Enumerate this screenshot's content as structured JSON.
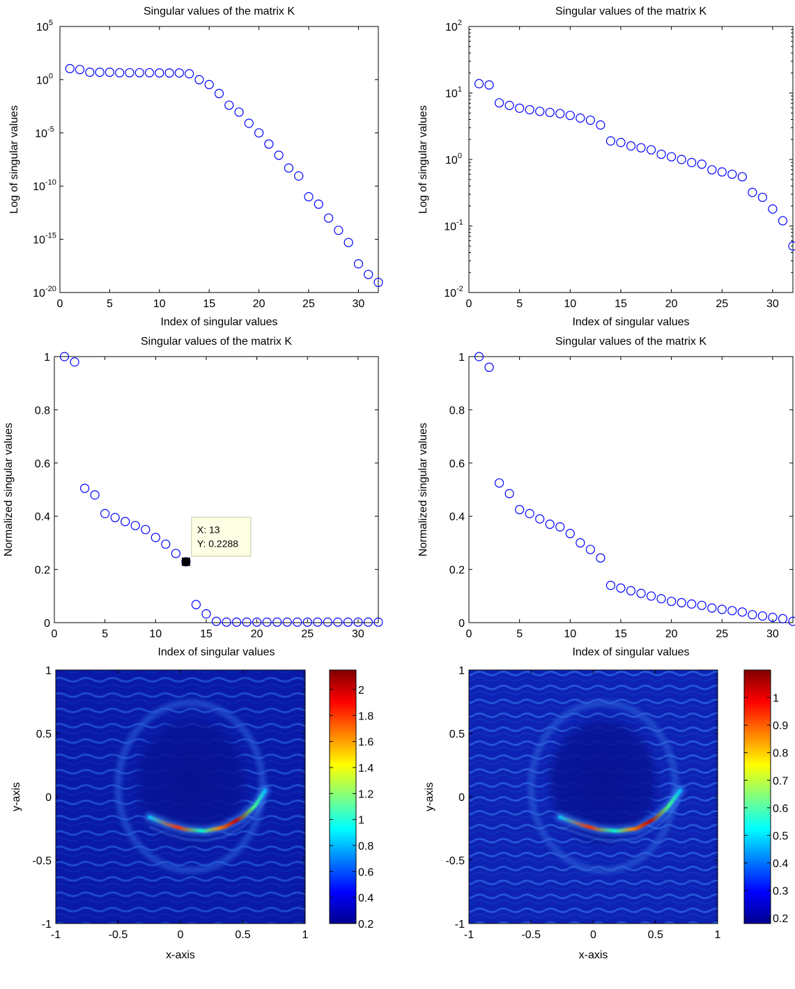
{
  "chart_data": [
    {
      "type": "scatter",
      "title": "Singular values of the matrix K",
      "xlabel": "Index of singular values",
      "ylabel": "Log of singular values",
      "yscale": "log",
      "xlim": [
        0,
        32
      ],
      "ylim": [
        1e-20,
        100000.0
      ],
      "xticks": [
        0,
        5,
        10,
        15,
        20,
        25,
        30
      ],
      "yticks": [
        {
          "exp": "-20",
          "value": 1e-20
        },
        {
          "exp": "-15",
          "value": 1e-15
        },
        {
          "exp": "-10",
          "value": 1e-10
        },
        {
          "exp": "-5",
          "value": 1e-05
        },
        {
          "exp": "0",
          "value": 1
        },
        {
          "exp": "5",
          "value": 100000.0
        }
      ],
      "tick_base": "10",
      "marker": "circle",
      "color": "#0000ff",
      "x": [
        1,
        2,
        3,
        4,
        5,
        6,
        7,
        8,
        9,
        10,
        11,
        12,
        13,
        14,
        15,
        16,
        17,
        18,
        19,
        20,
        21,
        22,
        23,
        24,
        25,
        26,
        27,
        28,
        29,
        30,
        31,
        32
      ],
      "y": [
        11,
        9,
        5,
        5,
        5,
        4.5,
        4.5,
        4.5,
        4.5,
        4.3,
        4.3,
        4.3,
        3.6,
        1,
        0.35,
        0.05,
        0.004,
        0.0009,
        8e-05,
        1e-05,
        9e-07,
        8e-08,
        5e-09,
        9e-10,
        1e-11,
        2e-12,
        1e-13,
        7e-15,
        5e-16,
        5e-18,
        5e-19,
        9e-20
      ]
    },
    {
      "type": "scatter",
      "title": "Singular values of the matrix K",
      "xlabel": "Index of singular values",
      "ylabel": "Log of singular values",
      "yscale": "log",
      "xlim": [
        0,
        32
      ],
      "ylim": [
        0.01,
        100
      ],
      "xticks": [
        0,
        5,
        10,
        15,
        20,
        25,
        30
      ],
      "yticks": [
        {
          "exp": "-2",
          "value": 0.01
        },
        {
          "exp": "-1",
          "value": 0.1
        },
        {
          "exp": "0",
          "value": 1
        },
        {
          "exp": "1",
          "value": 10
        },
        {
          "exp": "2",
          "value": 100
        }
      ],
      "tick_base": "10",
      "marker": "circle",
      "color": "#0000ff",
      "x": [
        1,
        2,
        3,
        4,
        5,
        6,
        7,
        8,
        9,
        10,
        11,
        12,
        13,
        14,
        15,
        16,
        17,
        18,
        19,
        20,
        21,
        22,
        23,
        24,
        25,
        26,
        27,
        28,
        29,
        30,
        31,
        32
      ],
      "y": [
        13.8,
        13.2,
        7.1,
        6.5,
        5.9,
        5.6,
        5.3,
        5.1,
        4.9,
        4.6,
        4.2,
        3.9,
        3.3,
        1.9,
        1.8,
        1.6,
        1.5,
        1.4,
        1.2,
        1.1,
        1.0,
        0.9,
        0.85,
        0.7,
        0.65,
        0.6,
        0.55,
        0.32,
        0.27,
        0.18,
        0.12,
        0.05
      ]
    },
    {
      "type": "scatter",
      "title": "Singular values of the matrix K",
      "xlabel": "Index of singular values",
      "ylabel": "Normalized singular values",
      "xlim": [
        0,
        32
      ],
      "ylim": [
        0,
        1
      ],
      "xticks": [
        0,
        5,
        10,
        15,
        20,
        25,
        30
      ],
      "yticks": [
        0,
        0.2,
        0.4,
        0.6,
        0.8,
        1
      ],
      "marker": "circle",
      "color": "#0000ff",
      "x": [
        1,
        2,
        3,
        4,
        5,
        6,
        7,
        8,
        9,
        10,
        11,
        12,
        13,
        14,
        15,
        16,
        17,
        18,
        19,
        20,
        21,
        22,
        23,
        24,
        25,
        26,
        27,
        28,
        29,
        30,
        31,
        32
      ],
      "y": [
        1.0,
        0.98,
        0.505,
        0.48,
        0.41,
        0.395,
        0.38,
        0.365,
        0.35,
        0.32,
        0.295,
        0.26,
        0.2288,
        0.068,
        0.033,
        0.005,
        0.002,
        0.002,
        0.002,
        0.002,
        0.002,
        0.002,
        0.002,
        0.002,
        0.002,
        0.002,
        0.002,
        0.002,
        0.002,
        0.002,
        0.002,
        0.002
      ],
      "datatip": {
        "index": 13,
        "x_label": "X: 13",
        "y_label": "Y: 0.2288"
      }
    },
    {
      "type": "scatter",
      "title": "Singular values of the matrix K",
      "xlabel": "Index of singular values",
      "ylabel": "Normalized singular values",
      "xlim": [
        0,
        32
      ],
      "ylim": [
        0,
        1
      ],
      "xticks": [
        0,
        5,
        10,
        15,
        20,
        25,
        30
      ],
      "yticks": [
        0,
        0.2,
        0.4,
        0.6,
        0.8,
        1
      ],
      "marker": "circle",
      "color": "#0000ff",
      "x": [
        1,
        2,
        3,
        4,
        5,
        6,
        7,
        8,
        9,
        10,
        11,
        12,
        13,
        14,
        15,
        16,
        17,
        18,
        19,
        20,
        21,
        22,
        23,
        24,
        25,
        26,
        27,
        28,
        29,
        30,
        31,
        32
      ],
      "y": [
        1.0,
        0.96,
        0.525,
        0.485,
        0.425,
        0.41,
        0.39,
        0.37,
        0.36,
        0.335,
        0.3,
        0.275,
        0.2432,
        0.14,
        0.13,
        0.12,
        0.11,
        0.1,
        0.09,
        0.08,
        0.075,
        0.07,
        0.065,
        0.055,
        0.05,
        0.045,
        0.04,
        0.03,
        0.025,
        0.02,
        0.015,
        0.005
      ]
    },
    {
      "type": "heatmap",
      "xlabel": "x-axis",
      "ylabel": "y-axis",
      "xlim": [
        -1,
        1
      ],
      "ylim": [
        -1,
        1
      ],
      "xticks": [
        -1,
        -0.5,
        0,
        0.5,
        1
      ],
      "yticks": [
        -1,
        -0.5,
        0,
        0.5,
        1
      ],
      "colormap": "jet",
      "clim": [
        0.2,
        2.15
      ],
      "colorbar_ticks": [
        0.2,
        0.4,
        0.6,
        0.8,
        1,
        1.2,
        1.4,
        1.6,
        1.8,
        2
      ],
      "curve": [
        [
          -0.25,
          -0.16
        ],
        [
          -0.1,
          -0.22
        ],
        [
          0.05,
          -0.26
        ],
        [
          0.2,
          -0.27
        ],
        [
          0.35,
          -0.24
        ],
        [
          0.5,
          -0.16
        ],
        [
          0.6,
          -0.07
        ],
        [
          0.68,
          0.05
        ]
      ]
    },
    {
      "type": "heatmap",
      "xlabel": "x-axis",
      "ylabel": "y-axis",
      "xlim": [
        -1,
        1
      ],
      "ylim": [
        -1,
        1
      ],
      "xticks": [
        -1,
        -0.5,
        0,
        0.5,
        1
      ],
      "yticks": [
        -1,
        -0.5,
        0,
        0.5,
        1
      ],
      "colormap": "jet",
      "clim": [
        0.18,
        1.1
      ],
      "colorbar_ticks": [
        0.2,
        0.3,
        0.4,
        0.5,
        0.6,
        0.7,
        0.8,
        0.9,
        1
      ],
      "curve": [
        [
          -0.27,
          -0.16
        ],
        [
          -0.1,
          -0.22
        ],
        [
          0.05,
          -0.26
        ],
        [
          0.2,
          -0.27
        ],
        [
          0.35,
          -0.25
        ],
        [
          0.5,
          -0.17
        ],
        [
          0.6,
          -0.08
        ],
        [
          0.7,
          0.05
        ]
      ]
    }
  ]
}
